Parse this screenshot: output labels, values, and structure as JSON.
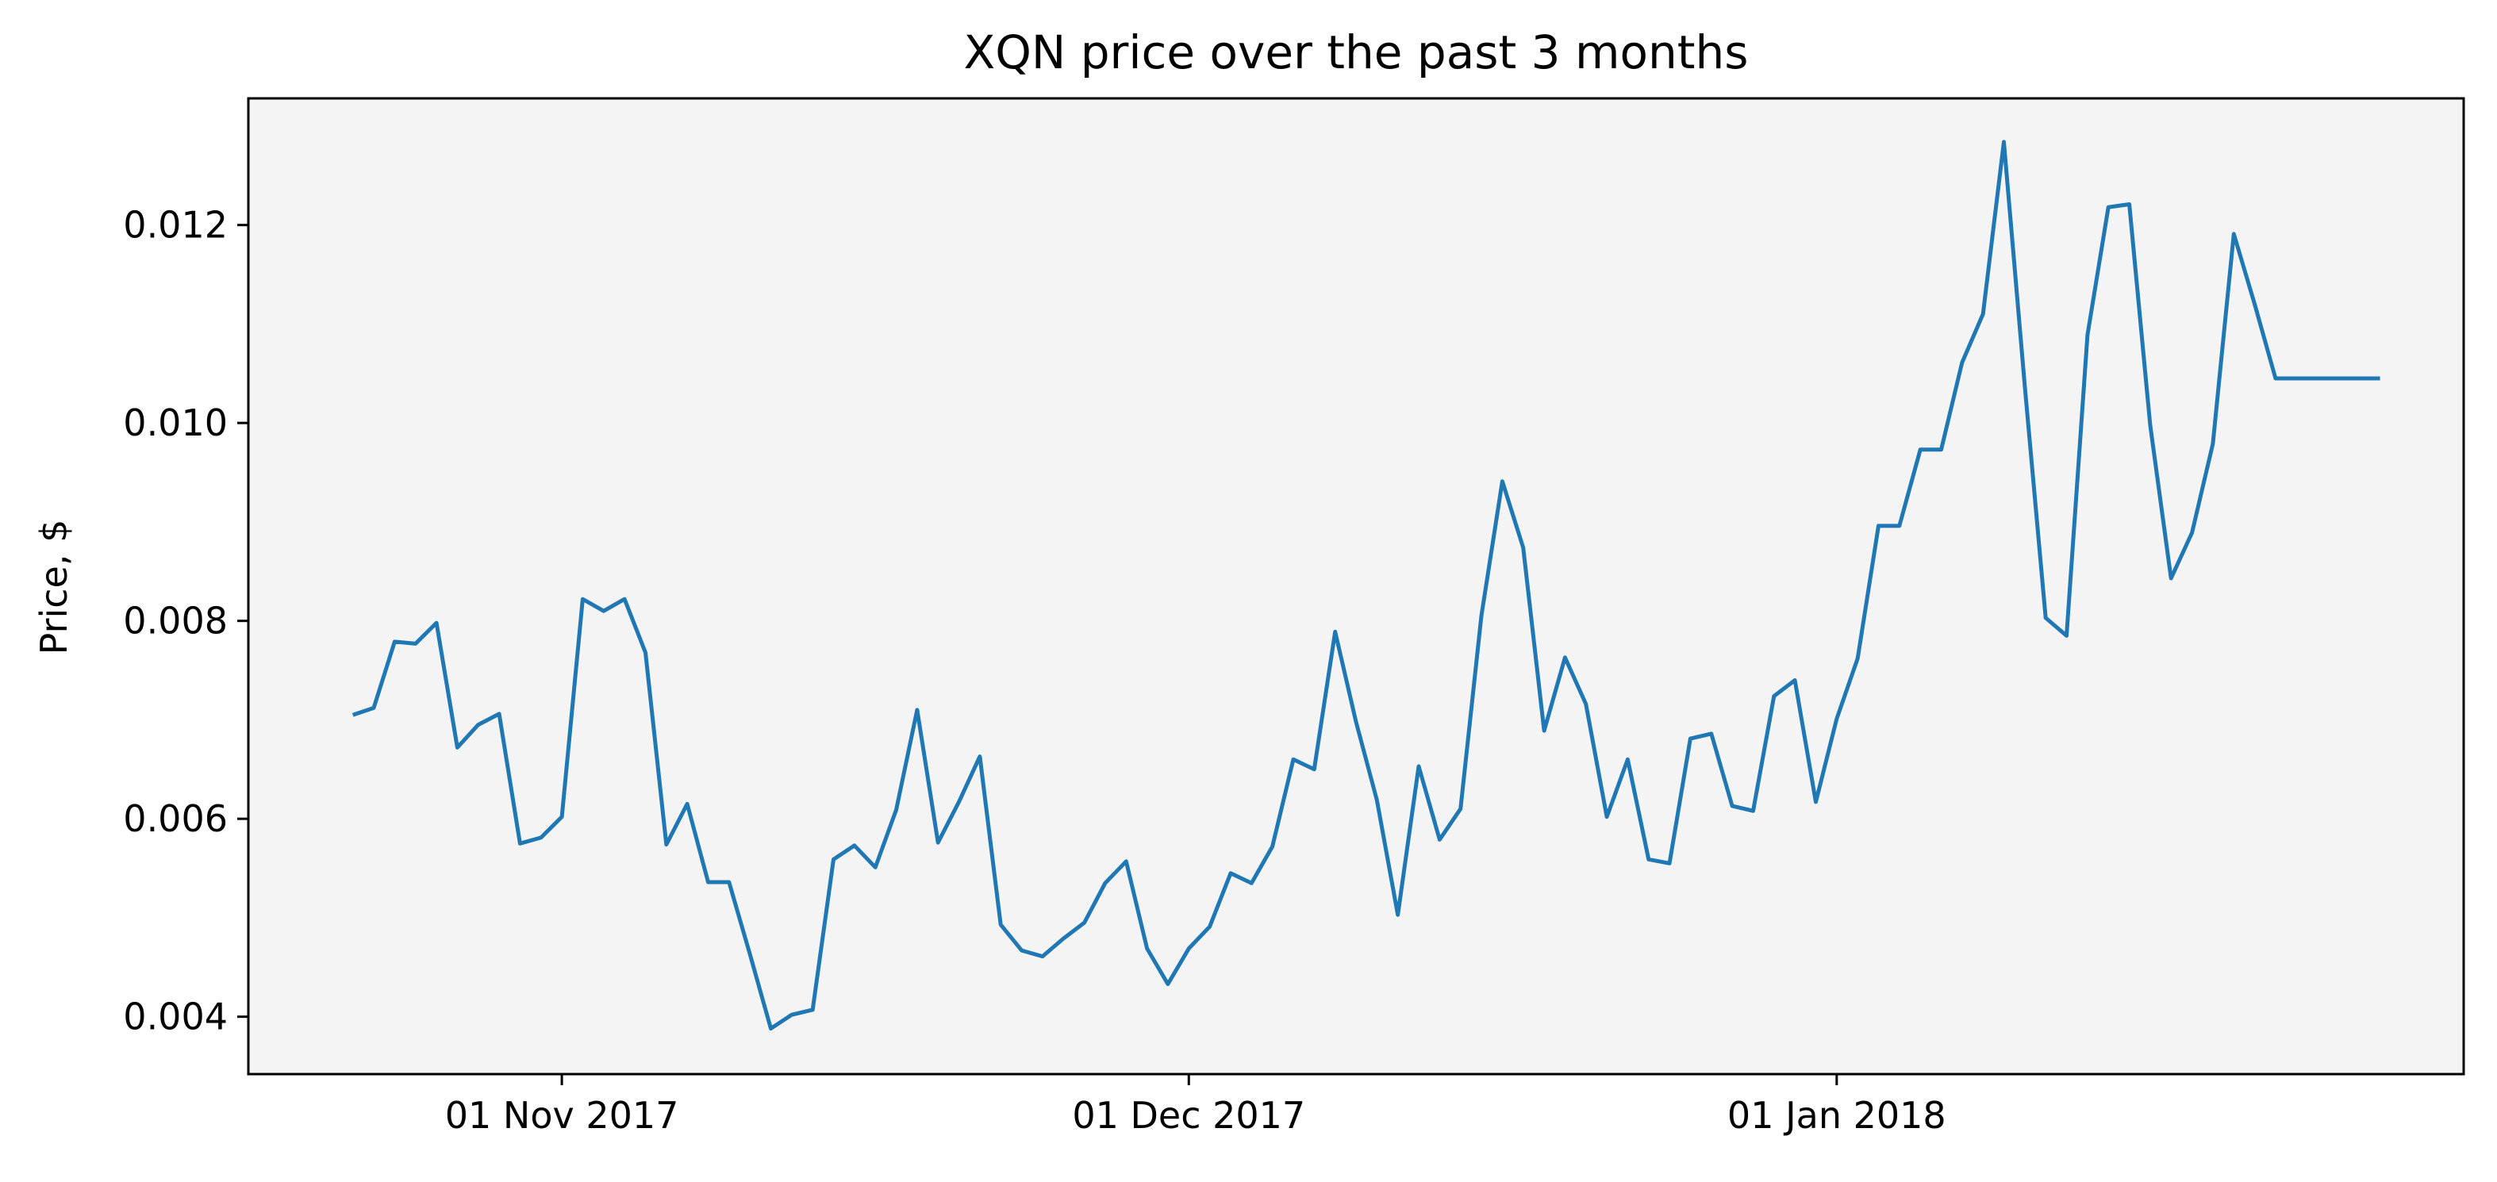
{
  "chart_data": {
    "type": "line",
    "title": "XQN price over the past 3 months",
    "xlabel": "",
    "ylabel": "Price, $",
    "x_tick_labels": [
      {
        "label": "01 Nov 2017",
        "date": "2017-11-01"
      },
      {
        "label": "01 Dec 2017",
        "date": "2017-12-01"
      },
      {
        "label": "01 Jan 2018",
        "date": "2018-01-01"
      }
    ],
    "y_ticks": [
      0.004,
      0.006,
      0.008,
      0.01,
      0.012
    ],
    "y_tick_labels": [
      "0.004",
      "0.006",
      "0.008",
      "0.010",
      "0.012"
    ],
    "xlim": [
      "2017-10-17",
      "2018-01-31"
    ],
    "ylim": [
      0.00342,
      0.01328
    ],
    "grid": false,
    "colors": {
      "line": "#1f77b4",
      "plot_background": "#f4f4f4",
      "axes": "#000000"
    },
    "series": [
      {
        "x": [
          "2017-10-22",
          "2017-10-23",
          "2017-10-24",
          "2017-10-25",
          "2017-10-26",
          "2017-10-27",
          "2017-10-28",
          "2017-10-29",
          "2017-10-30",
          "2017-10-31",
          "2017-11-01",
          "2017-11-02",
          "2017-11-03",
          "2017-11-04",
          "2017-11-05",
          "2017-11-06",
          "2017-11-07",
          "2017-11-08",
          "2017-11-09",
          "2017-11-10",
          "2017-11-11",
          "2017-11-12",
          "2017-11-13",
          "2017-11-14",
          "2017-11-15",
          "2017-11-16",
          "2017-11-17",
          "2017-11-18",
          "2017-11-19",
          "2017-11-20",
          "2017-11-21",
          "2017-11-22",
          "2017-11-23",
          "2017-11-24",
          "2017-11-25",
          "2017-11-26",
          "2017-11-27",
          "2017-11-28",
          "2017-11-29",
          "2017-11-30",
          "2017-12-01",
          "2017-12-02",
          "2017-12-03",
          "2017-12-04",
          "2017-12-05",
          "2017-12-06",
          "2017-12-07",
          "2017-12-08",
          "2017-12-09",
          "2017-12-10",
          "2017-12-11",
          "2017-12-12",
          "2017-12-13",
          "2017-12-14",
          "2017-12-15",
          "2017-12-16",
          "2017-12-17",
          "2017-12-18",
          "2017-12-19",
          "2017-12-20",
          "2017-12-21",
          "2017-12-22",
          "2017-12-23",
          "2017-12-24",
          "2017-12-25",
          "2017-12-26",
          "2017-12-27",
          "2017-12-28",
          "2017-12-29",
          "2017-12-30",
          "2017-12-31",
          "2018-01-01",
          "2018-01-02",
          "2018-01-03",
          "2018-01-04",
          "2018-01-05",
          "2018-01-06",
          "2018-01-07",
          "2018-01-08",
          "2018-01-09",
          "2018-01-10",
          "2018-01-11",
          "2018-01-12",
          "2018-01-13",
          "2018-01-14",
          "2018-01-15",
          "2018-01-16",
          "2018-01-17",
          "2018-01-18",
          "2018-01-19",
          "2018-01-20",
          "2018-01-21",
          "2018-01-22",
          "2018-01-23",
          "2018-01-24",
          "2018-01-25",
          "2018-01-26",
          "2018-01-27"
        ],
        "y": [
          0.00705,
          0.00712,
          0.00779,
          0.00777,
          0.00798,
          0.00672,
          0.00695,
          0.00706,
          0.00575,
          0.00581,
          0.00602,
          0.00822,
          0.0081,
          0.00822,
          0.00768,
          0.00574,
          0.00615,
          0.00536,
          0.00536,
          0.00463,
          0.00388,
          0.00402,
          0.00407,
          0.00559,
          0.00573,
          0.00551,
          0.00609,
          0.0071,
          0.00576,
          0.00617,
          0.00663,
          0.00493,
          0.00467,
          0.00461,
          0.00479,
          0.00495,
          0.00535,
          0.00557,
          0.00469,
          0.00433,
          0.00469,
          0.00491,
          0.00545,
          0.00535,
          0.00572,
          0.0066,
          0.0065,
          0.00789,
          0.00698,
          0.00619,
          0.00503,
          0.00653,
          0.00579,
          0.0061,
          0.00805,
          0.00941,
          0.00874,
          0.00689,
          0.00763,
          0.00716,
          0.00602,
          0.0066,
          0.00559,
          0.00555,
          0.00681,
          0.00686,
          0.00613,
          0.00608,
          0.00724,
          0.0074,
          0.00617,
          0.00701,
          0.00762,
          0.00896,
          0.00896,
          0.00973,
          0.00973,
          0.01061,
          0.0111,
          0.01284,
          0.01037,
          0.00803,
          0.00785,
          0.01089,
          0.01218,
          0.01221,
          0.00998,
          0.00843,
          0.00889,
          0.00979,
          0.01191,
          0.0112,
          0.01045,
          0.01045,
          0.01045,
          0.01045,
          0.01045,
          0.01045
        ]
      }
    ]
  }
}
